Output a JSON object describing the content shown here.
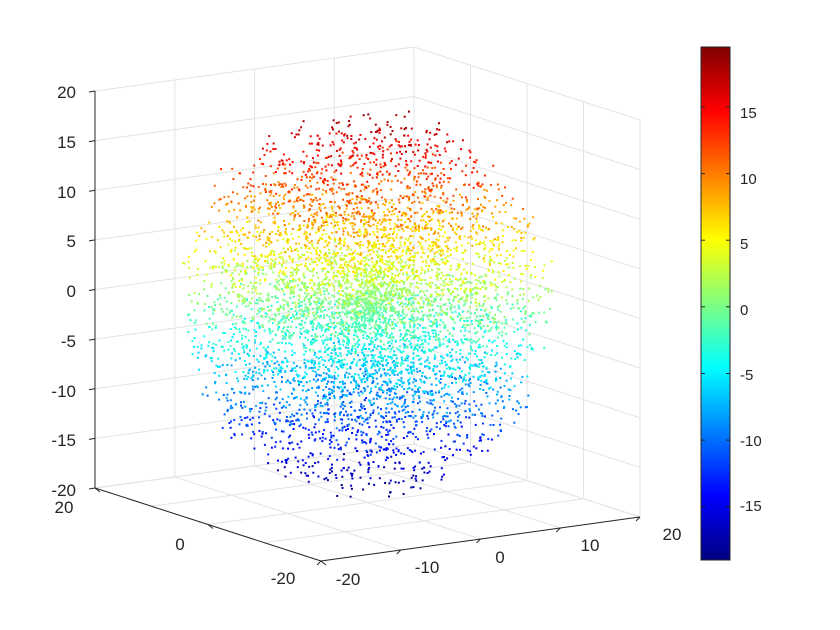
{
  "chart_data": {
    "type": "scatter",
    "title": "",
    "xlabel": "",
    "ylabel": "",
    "zlabel": "",
    "projection": "3d",
    "color_by": "z",
    "colormap": "jet",
    "xlim": [
      -20,
      20
    ],
    "ylim": [
      -20,
      20
    ],
    "zlim": [
      -20,
      20
    ],
    "x_ticks": [
      "-20",
      "-10",
      "0",
      "10",
      "20"
    ],
    "y_ticks": [
      "-20",
      "0",
      "20"
    ],
    "z_ticks": [
      "-20",
      "-15",
      "-10",
      "-5",
      "0",
      "5",
      "10",
      "15",
      "20"
    ],
    "colorbar": {
      "range": [
        -19,
        19.5
      ],
      "ticks": [
        "15",
        "10",
        "5",
        "0",
        "-5",
        "-10",
        "-15"
      ],
      "location": "right"
    },
    "point_cloud": {
      "shape": "sphere",
      "center": [
        0,
        0,
        0
      ],
      "radius": 20,
      "approx_points": 15000
    },
    "grid": true
  }
}
